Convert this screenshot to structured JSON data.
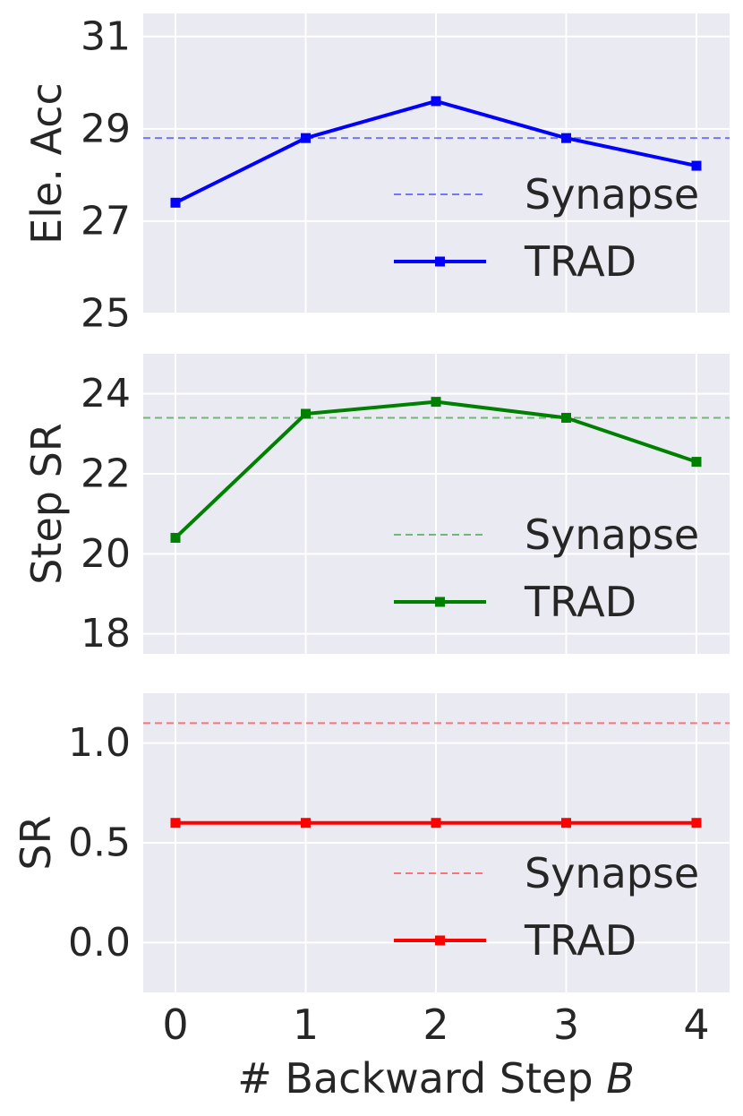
{
  "chart_data": [
    {
      "type": "line",
      "ylabel": "Ele. Acc",
      "x": [
        0,
        1,
        2,
        3,
        4
      ],
      "yticks": [
        "25",
        "27",
        "29",
        "31"
      ],
      "ytick_values": [
        25,
        27,
        29,
        31
      ],
      "ylim": [
        25,
        31.5
      ],
      "color": "#0000ff",
      "series": [
        {
          "name": "TRAD",
          "values": [
            27.4,
            28.8,
            29.6,
            28.8,
            28.2
          ]
        }
      ],
      "baseline": {
        "name": "Synapse",
        "value": 28.8
      },
      "legend": "lower-right"
    },
    {
      "type": "line",
      "ylabel": "Step SR",
      "x": [
        0,
        1,
        2,
        3,
        4
      ],
      "yticks": [
        "18",
        "20",
        "22",
        "24"
      ],
      "ytick_values": [
        18,
        20,
        22,
        24
      ],
      "ylim": [
        17.5,
        25
      ],
      "color": "#008000",
      "series": [
        {
          "name": "TRAD",
          "values": [
            20.4,
            23.5,
            23.8,
            23.4,
            22.3
          ]
        }
      ],
      "baseline": {
        "name": "Synapse",
        "value": 23.4
      },
      "legend": "lower-right"
    },
    {
      "type": "line",
      "ylabel": "SR",
      "x": [
        0,
        1,
        2,
        3,
        4
      ],
      "yticks": [
        "0.0",
        "0.5",
        "1.0"
      ],
      "ytick_values": [
        0,
        0.5,
        1.0
      ],
      "ylim": [
        -0.25,
        1.25
      ],
      "color": "#ff0000",
      "series": [
        {
          "name": "TRAD",
          "values": [
            0.6,
            0.6,
            0.6,
            0.6,
            0.6
          ]
        }
      ],
      "baseline": {
        "name": "Synapse",
        "value": 1.1
      },
      "legend": "lower-right"
    }
  ],
  "xticks": [
    "0",
    "1",
    "2",
    "3",
    "4"
  ],
  "xlabel": {
    "prefix": "# Backward Step ",
    "variable": "B"
  },
  "grid": true
}
